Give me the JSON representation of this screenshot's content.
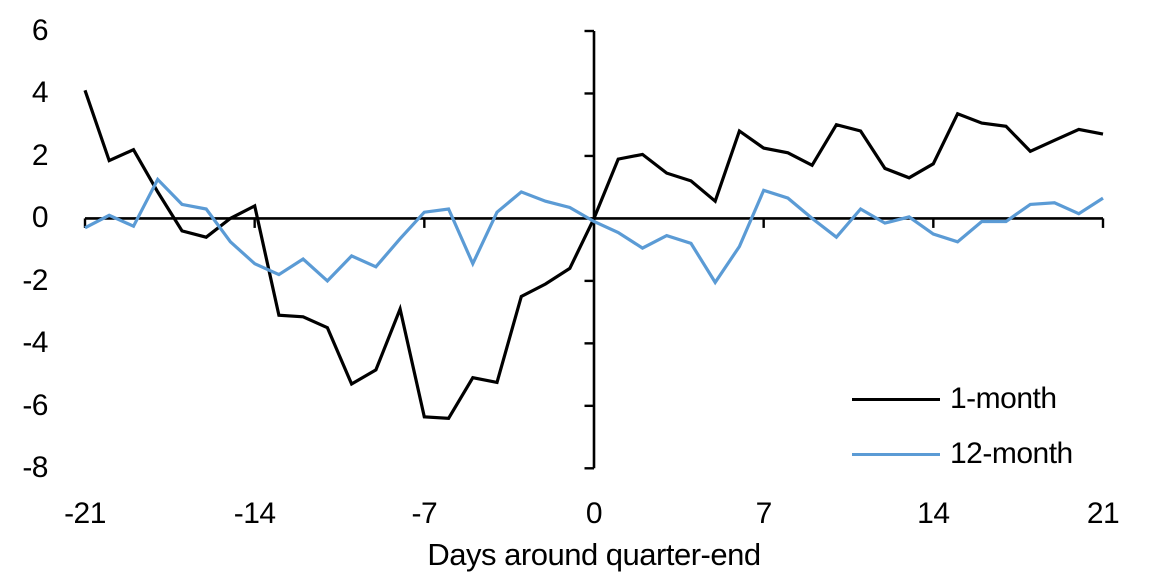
{
  "chart_data": {
    "type": "line",
    "xlabel": "Days around quarter-end",
    "ylabel": "",
    "title": "",
    "xlim": [
      -21,
      21
    ],
    "ylim": [
      -8,
      6
    ],
    "x_ticks": [
      -21,
      -14,
      -7,
      0,
      7,
      14,
      21
    ],
    "y_ticks": [
      6,
      4,
      2,
      0,
      -2,
      -4,
      -6,
      -8
    ],
    "grid": false,
    "legend_position": "inside-bottom-right",
    "axes_cross_at": [
      0,
      0
    ],
    "x": [
      -21,
      -20,
      -19,
      -18,
      -17,
      -16,
      -15,
      -14,
      -13,
      -12,
      -11,
      -10,
      -9,
      -8,
      -7,
      -6,
      -5,
      -4,
      -3,
      -2,
      -1,
      0,
      1,
      2,
      3,
      4,
      5,
      6,
      7,
      8,
      9,
      10,
      11,
      12,
      13,
      14,
      15,
      16,
      17,
      18,
      19,
      20,
      21
    ],
    "series": [
      {
        "name": "1-month",
        "color": "#000000",
        "values": [
          4.1,
          1.85,
          2.2,
          0.85,
          -0.4,
          -0.6,
          0.0,
          0.4,
          -3.1,
          -3.15,
          -3.5,
          -5.3,
          -4.85,
          -2.9,
          -6.35,
          -6.4,
          -5.1,
          -5.25,
          -2.5,
          -2.1,
          -1.6,
          0.0,
          1.9,
          2.05,
          1.45,
          1.2,
          0.55,
          2.8,
          2.25,
          2.1,
          1.7,
          3.0,
          2.8,
          1.6,
          1.3,
          1.75,
          3.35,
          3.05,
          2.95,
          2.15,
          2.5,
          2.85,
          2.7
        ]
      },
      {
        "name": "12-month",
        "color": "#5B9BD5",
        "values": [
          -0.3,
          0.1,
          -0.25,
          1.25,
          0.45,
          0.3,
          -0.75,
          -1.45,
          -1.8,
          -1.3,
          -2.0,
          -1.2,
          -1.55,
          -0.65,
          0.2,
          0.3,
          -1.45,
          0.2,
          0.85,
          0.55,
          0.35,
          -0.1,
          -0.45,
          -0.95,
          -0.55,
          -0.8,
          -2.05,
          -0.9,
          0.9,
          0.65,
          0.0,
          -0.6,
          0.3,
          -0.15,
          0.05,
          -0.5,
          -0.75,
          -0.1,
          -0.1,
          0.45,
          0.5,
          0.15,
          0.65
        ]
      }
    ]
  }
}
